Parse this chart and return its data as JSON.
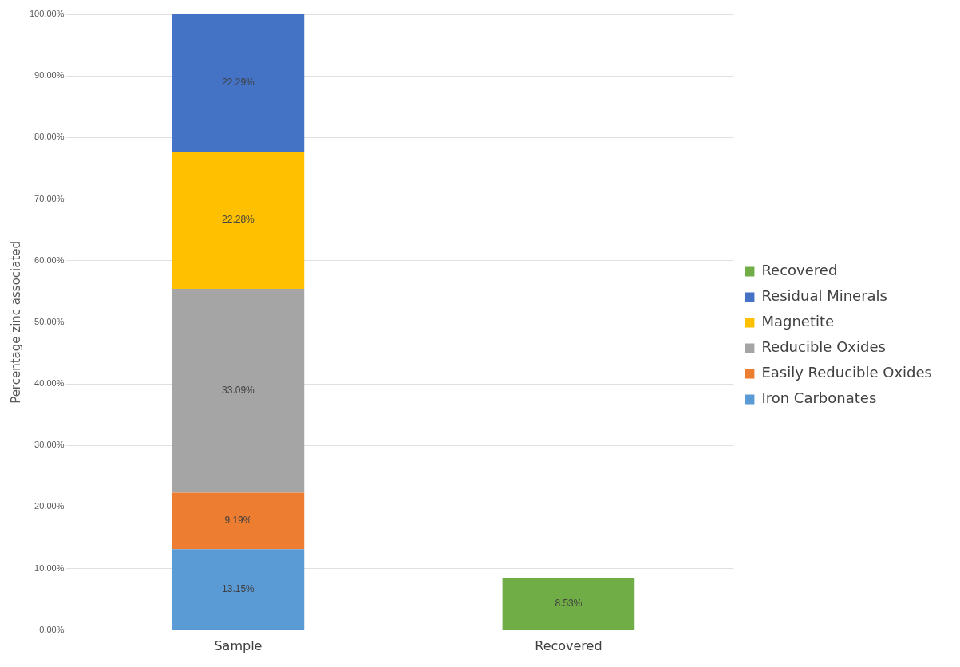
{
  "chart_data": {
    "type": "bar",
    "stacked": true,
    "ylabel": "Percentage zinc associated",
    "categories": [
      "Sample",
      "Recovered"
    ],
    "series": [
      {
        "name": "Iron Carbonates",
        "color": "#5b9bd5",
        "values": [
          13.15,
          null
        ],
        "value_labels": [
          "13.15%",
          null
        ]
      },
      {
        "name": "Easily Reducible Oxides",
        "color": "#ed7d31",
        "values": [
          9.19,
          null
        ],
        "value_labels": [
          "9.19%",
          null
        ]
      },
      {
        "name": "Reducible Oxides",
        "color": "#a5a5a5",
        "values": [
          33.09,
          null
        ],
        "value_labels": [
          "33.09%",
          null
        ]
      },
      {
        "name": "Magnetite",
        "color": "#ffc000",
        "values": [
          22.28,
          null
        ],
        "value_labels": [
          "22.28%",
          null
        ]
      },
      {
        "name": "Residual Minerals",
        "color": "#4472c4",
        "values": [
          22.29,
          null
        ],
        "value_labels": [
          "22.29%",
          null
        ]
      },
      {
        "name": "Recovered",
        "color": "#70ad47",
        "values": [
          null,
          8.53
        ],
        "value_labels": [
          null,
          "8.53%"
        ]
      }
    ],
    "ylim": [
      0,
      100
    ],
    "yticks": [
      {
        "value": 0,
        "label": "0.00%"
      },
      {
        "value": 10,
        "label": "10.00%"
      },
      {
        "value": 20,
        "label": "20.00%"
      },
      {
        "value": 30,
        "label": "30.00%"
      },
      {
        "value": 40,
        "label": "40.00%"
      },
      {
        "value": 50,
        "label": "50.00%"
      },
      {
        "value": 60,
        "label": "60.00%"
      },
      {
        "value": 70,
        "label": "70.00%"
      },
      {
        "value": 80,
        "label": "80.00%"
      },
      {
        "value": 90,
        "label": "90.00%"
      },
      {
        "value": 100,
        "label": "100.00%"
      }
    ],
    "grid": "y",
    "legend": "right"
  }
}
